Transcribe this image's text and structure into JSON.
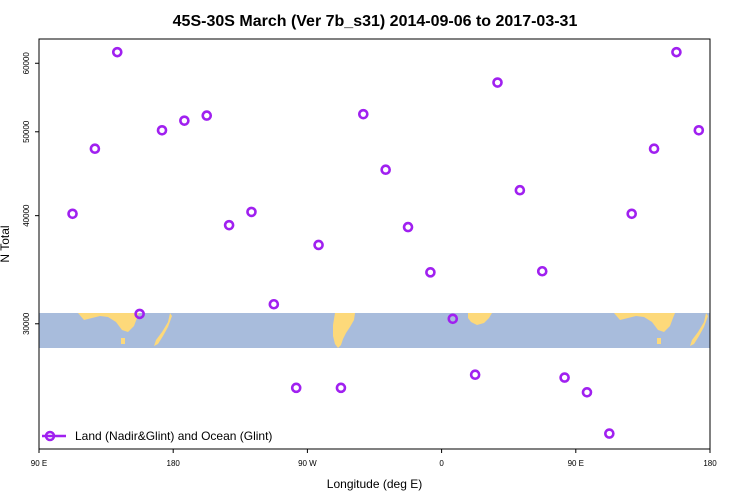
{
  "chart_data": {
    "type": "scatter",
    "title": "45S-30S March (Ver 7b_s31)   2014-09-06 to 2017-03-31",
    "xlabel": "Longitude (deg E)",
    "ylabel": "N Total",
    "y_scale": "log",
    "xlim": [
      90,
      540
    ],
    "ylim": [
      21500,
      64000
    ],
    "x_ticks": [
      {
        "value": 90,
        "label": "90 E"
      },
      {
        "value": 180,
        "label": "180"
      },
      {
        "value": 270,
        "label": "90 W"
      },
      {
        "value": 360,
        "label": "0"
      },
      {
        "value": 450,
        "label": "90 E"
      },
      {
        "value": 540,
        "label": "180"
      }
    ],
    "y_ticks": [
      {
        "value": 30000,
        "label": "30000"
      },
      {
        "value": 40000,
        "label": "40000"
      },
      {
        "value": 50000,
        "label": "50000"
      },
      {
        "value": 60000,
        "label": "60000"
      }
    ],
    "series": [
      {
        "name": "Land (Nadir&Glint) and Ocean (Glint)",
        "color": "#a020f0",
        "marker": "open-circle",
        "x": [
          112.5,
          127.5,
          142.5,
          157.5,
          172.5,
          187.5,
          202.5,
          217.5,
          232.5,
          247.5,
          262.5,
          277.5,
          292.5,
          307.5,
          322.5,
          337.5,
          352.5,
          367.5,
          382.5,
          397.5,
          412.5,
          427.5,
          442.5,
          457.5,
          472.5,
          487.5,
          502.5,
          517.5,
          532.5
        ],
        "y": [
          40200,
          47800,
          61800,
          30800,
          50200,
          51500,
          52200,
          39000,
          40400,
          31600,
          25300,
          37000,
          25300,
          52400,
          45200,
          38800,
          34400,
          30400,
          26200,
          57000,
          42800,
          34500,
          26000,
          25000,
          22400,
          40200,
          47800,
          61800,
          50200
        ]
      }
    ],
    "legend": {
      "position": "bottom-left",
      "label": "Land (Nadir&Glint) and Ocean (Glint)"
    },
    "background_map": {
      "ocean_color": "#a8bcdc",
      "land_color": "#fdd97a"
    },
    "grid": false
  }
}
